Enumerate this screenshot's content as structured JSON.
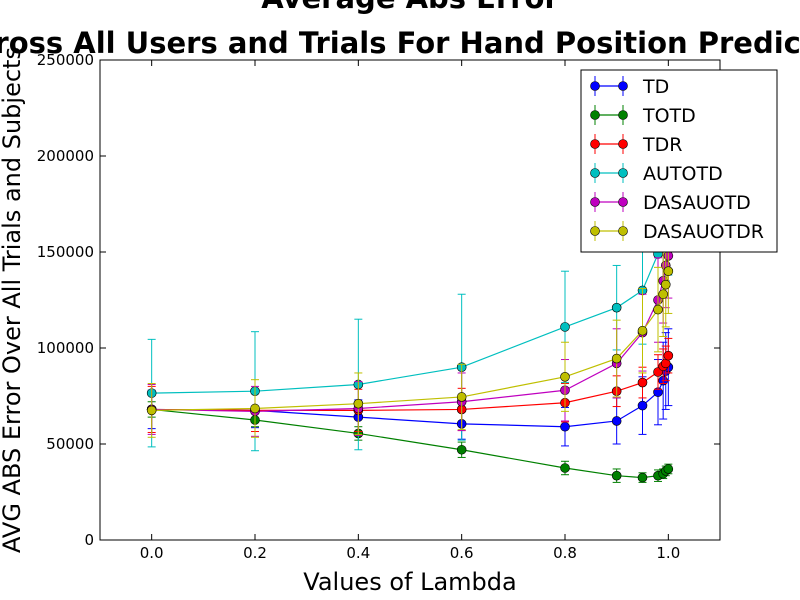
{
  "chart_data": {
    "type": "line",
    "title": "Average Abs Error",
    "subtitle": "Across All Users and Trials For Hand Position Prediction",
    "xlabel": "Values of Lambda",
    "ylabel": "AVG ABS Error Over All Trials and Subjects",
    "xlim": [
      -0.1,
      1.1
    ],
    "ylim": [
      0,
      250000
    ],
    "xticks": [
      0.0,
      0.2,
      0.4,
      0.6,
      0.8,
      1.0
    ],
    "xtick_labels": [
      "0.0",
      "0.2",
      "0.4",
      "0.6",
      "0.8",
      "1.0"
    ],
    "yticks": [
      0,
      50000,
      100000,
      150000,
      200000,
      250000
    ],
    "ytick_labels": [
      "0",
      "50000",
      "100000",
      "150000",
      "200000",
      "250000"
    ],
    "grid": false,
    "legend_position": "top-right",
    "x": [
      0.0,
      0.2,
      0.4,
      0.6,
      0.8,
      0.9,
      0.95,
      0.98,
      0.99,
      0.995,
      1.0
    ],
    "series": [
      {
        "name": "TD",
        "color": "#0000ff",
        "values": [
          68000,
          67500,
          64000,
          60500,
          59000,
          62000,
          70000,
          77000,
          83000,
          88000,
          90000
        ],
        "errors": [
          10000,
          9000,
          9000,
          8000,
          10000,
          12000,
          15000,
          17000,
          20000,
          20000,
          20000
        ]
      },
      {
        "name": "TOTD",
        "color": "#008000",
        "values": [
          68000,
          62500,
          55500,
          47000,
          37500,
          33500,
          32500,
          33500,
          34500,
          36000,
          37000
        ],
        "errors": [
          4000,
          3500,
          3500,
          4000,
          3500,
          3500,
          2500,
          3000,
          2500,
          2500,
          2500
        ]
      },
      {
        "name": "TDR",
        "color": "#ff0000",
        "values": [
          68000,
          67500,
          67500,
          68000,
          71500,
          77500,
          82000,
          87500,
          90500,
          92000,
          96000
        ],
        "errors": [
          12000,
          11000,
          11000,
          11000,
          10000,
          8000,
          8000,
          9000,
          9000,
          9000,
          9000
        ]
      },
      {
        "name": "AUTOTD",
        "color": "#00bfbf",
        "values": [
          76500,
          77500,
          81000,
          90000,
          111000,
          121000,
          130000,
          149000,
          158000,
          165000,
          168000
        ],
        "errors": [
          28000,
          31000,
          34000,
          38000,
          29000,
          22000,
          28000,
          30000,
          30000,
          30000,
          30000
        ]
      },
      {
        "name": "DASAUOTD",
        "color": "#bf00bf",
        "values": [
          68000,
          67000,
          68500,
          72000,
          78000,
          92000,
          108000,
          125000,
          135000,
          143000,
          148000
        ],
        "errors": [
          13000,
          13000,
          14000,
          15000,
          16000,
          18000,
          20000,
          22000,
          22000,
          22000,
          22000
        ]
      },
      {
        "name": "DASAUOTDR",
        "color": "#bfbf00",
        "values": [
          67500,
          68500,
          71000,
          74500,
          85000,
          94500,
          109000,
          120000,
          128000,
          133000,
          140000
        ],
        "errors": [
          14000,
          15000,
          16000,
          17000,
          18000,
          20000,
          22000,
          22000,
          22000,
          22000,
          22000
        ]
      }
    ]
  }
}
